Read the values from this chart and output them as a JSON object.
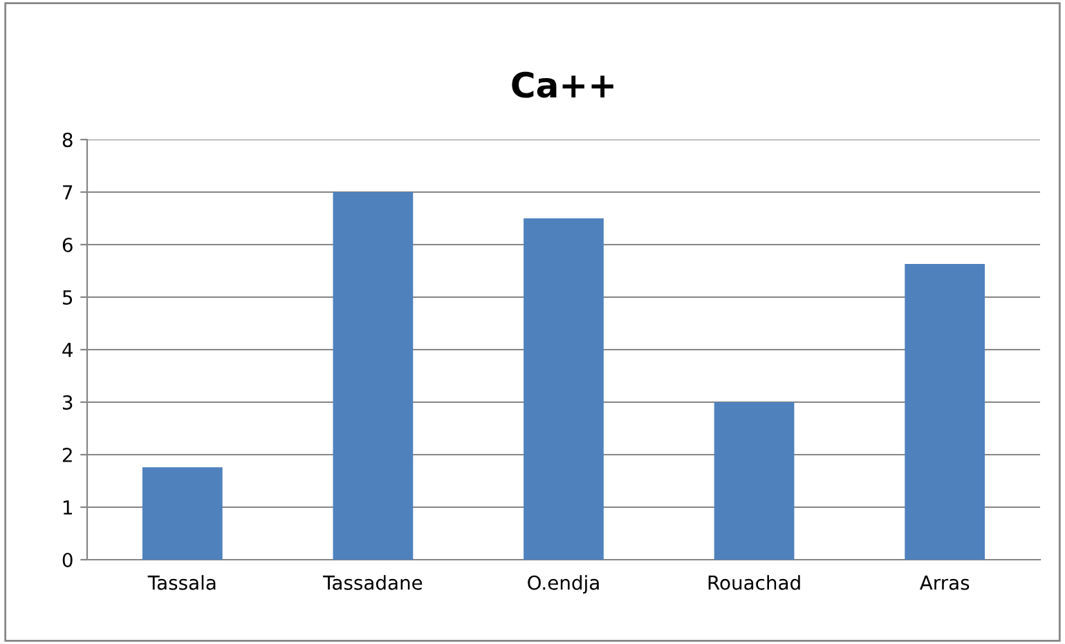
{
  "chart_data": {
    "type": "bar",
    "title": "Ca++",
    "categories": [
      "Tassala",
      "Tassadane",
      "O.endja",
      "Rouachad",
      "Arras"
    ],
    "values": [
      1.76,
      7.0,
      6.5,
      3.0,
      5.63
    ],
    "color": "#4f81bd",
    "ylim": [
      0,
      8
    ],
    "yticks": [
      0,
      1,
      2,
      3,
      4,
      5,
      6,
      7,
      8
    ],
    "grid": "y",
    "legend": false
  }
}
